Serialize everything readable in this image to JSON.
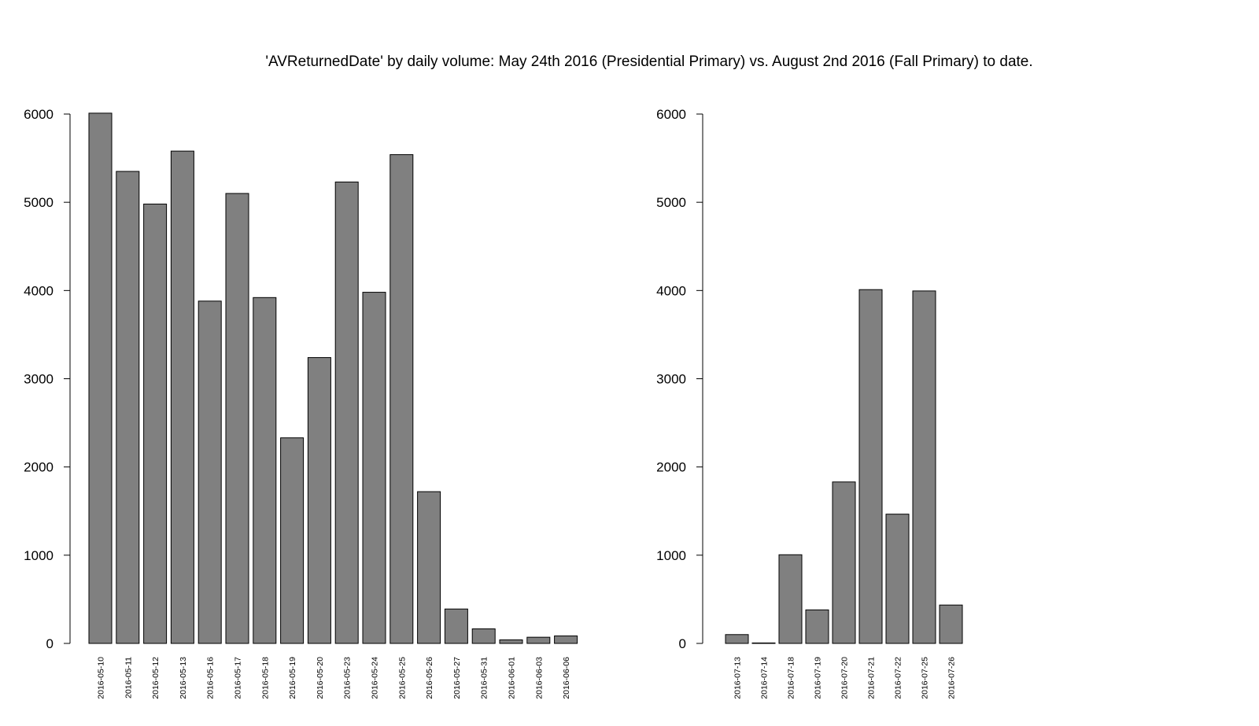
{
  "title": "'AVReturnedDate' by daily volume: May 24th 2016 (Presidential Primary) vs. August 2nd 2016 (Fall Primary) to date.",
  "colors": {
    "bar_fill": "#808080",
    "bar_stroke": "#000000",
    "axis": "#000000",
    "background": "#ffffff"
  },
  "chart_data": [
    {
      "type": "bar",
      "categories": [
        "2016-05-10",
        "2016-05-11",
        "2016-05-12",
        "2016-05-13",
        "2016-05-16",
        "2016-05-17",
        "2016-05-18",
        "2016-05-19",
        "2016-05-20",
        "2016-05-23",
        "2016-05-24",
        "2016-05-25",
        "2016-05-26",
        "2016-05-27",
        "2016-05-31",
        "2016-06-01",
        "2016-06-03",
        "2016-06-06"
      ],
      "values": [
        6010,
        5350,
        4980,
        5580,
        3880,
        5100,
        3920,
        2330,
        3240,
        5230,
        3980,
        5540,
        1720,
        390,
        165,
        40,
        70,
        85
      ],
      "xlabel": "",
      "ylabel": "",
      "ylim": [
        0,
        6000
      ],
      "yticks": [
        0,
        1000,
        2000,
        3000,
        4000,
        5000,
        6000
      ],
      "grid": false
    },
    {
      "type": "bar",
      "categories": [
        "2016-07-13",
        "2016-07-14",
        "2016-07-18",
        "2016-07-19",
        "2016-07-20",
        "2016-07-21",
        "2016-07-22",
        "2016-07-25",
        "2016-07-26"
      ],
      "values": [
        100,
        5,
        1005,
        380,
        1830,
        4010,
        1465,
        3995,
        435
      ],
      "xlabel": "",
      "ylabel": "",
      "ylim": [
        0,
        6000
      ],
      "yticks": [
        0,
        1000,
        2000,
        3000,
        4000,
        5000,
        6000
      ],
      "grid": false
    }
  ]
}
